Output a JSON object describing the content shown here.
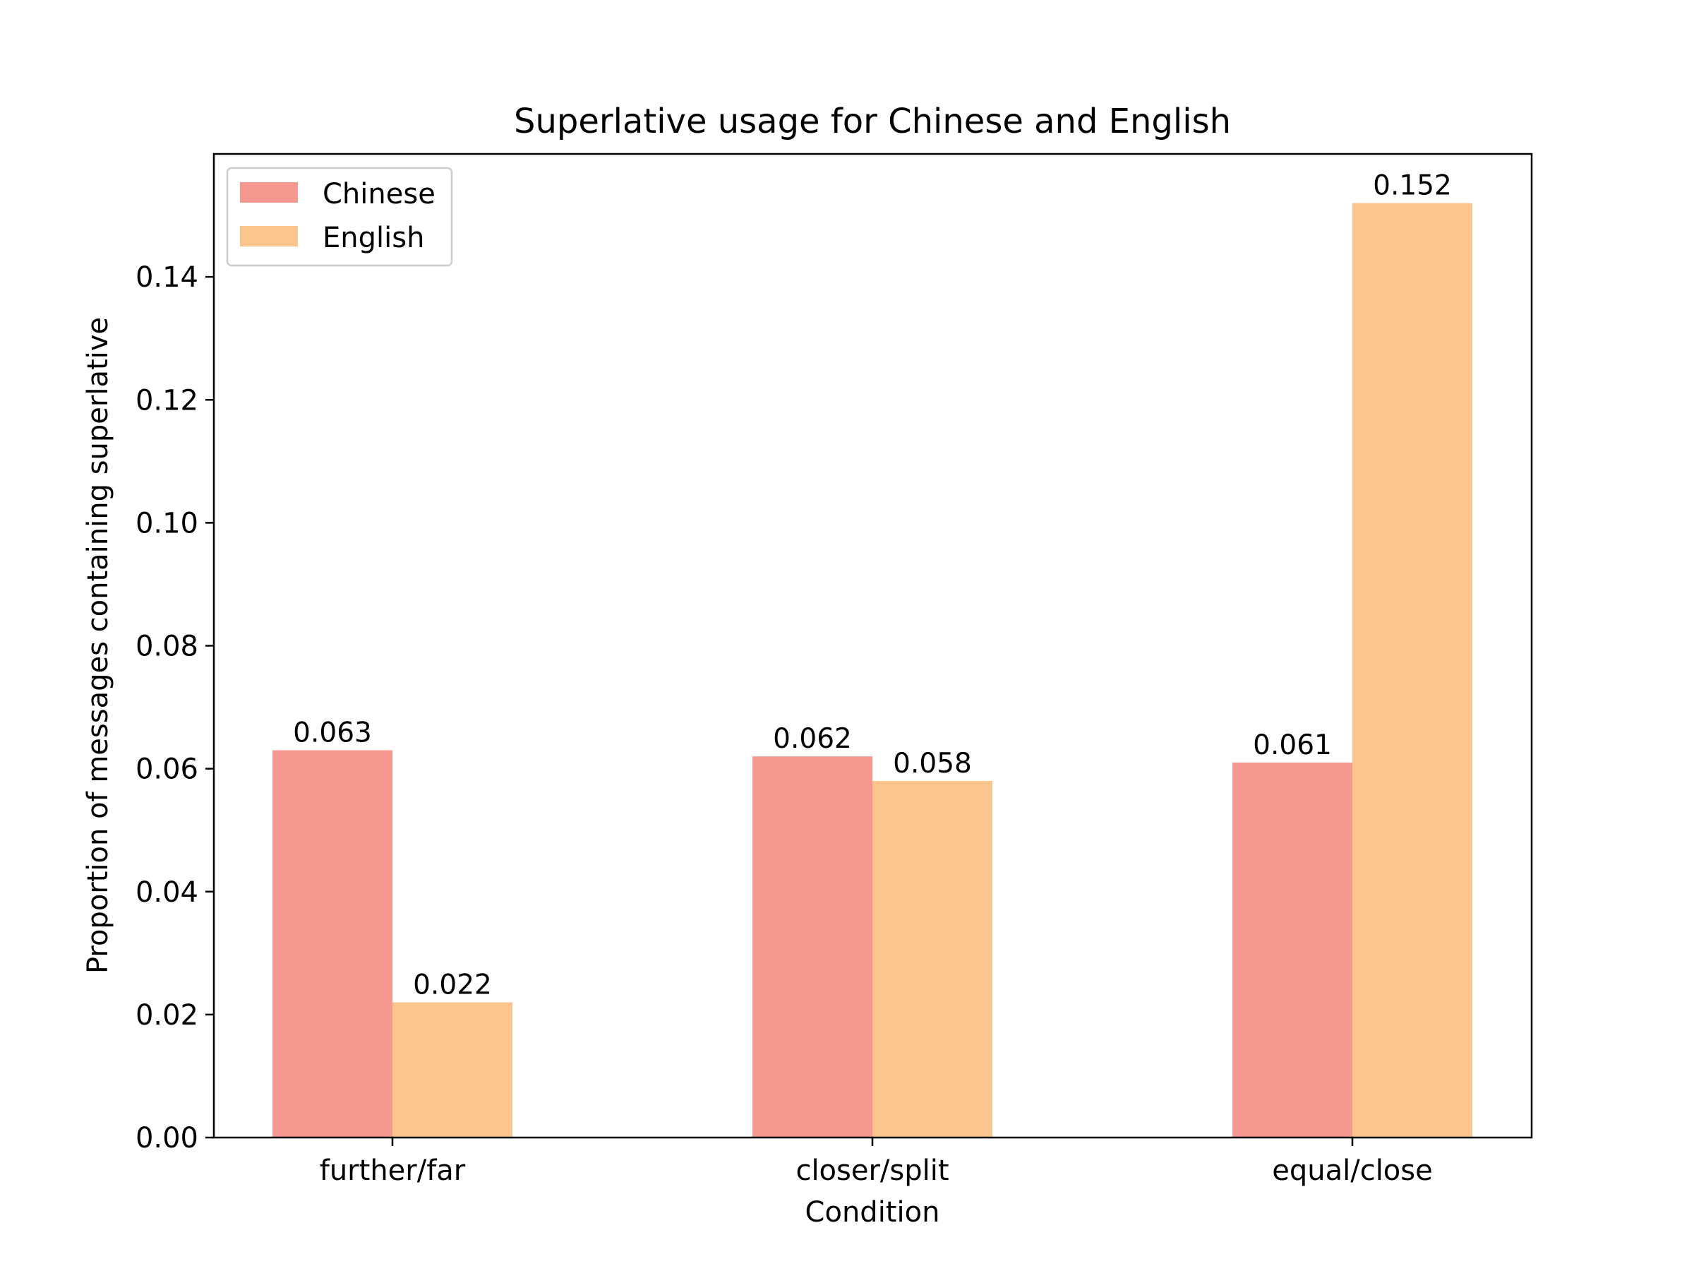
{
  "chart_data": {
    "type": "bar",
    "title": "Superlative usage for Chinese and English",
    "xlabel": "Condition",
    "ylabel": "Proportion of messages containing superlative",
    "categories": [
      "further/far",
      "closer/split",
      "equal/close"
    ],
    "series": [
      {
        "name": "Chinese",
        "color": "#f4978f",
        "values": [
          0.063,
          0.062,
          0.061
        ]
      },
      {
        "name": "English",
        "color": "#fac58c",
        "values": [
          0.022,
          0.058,
          0.152
        ]
      }
    ],
    "value_labels": [
      [
        "0.063",
        "0.062",
        "0.061"
      ],
      [
        "0.022",
        "0.058",
        "0.152"
      ]
    ],
    "ylim": [
      0,
      0.16
    ],
    "yticks": [
      0.0,
      0.02,
      0.04,
      0.06,
      0.08,
      0.1,
      0.12,
      0.14
    ],
    "ytick_labels": [
      "0.00",
      "0.02",
      "0.04",
      "0.06",
      "0.08",
      "0.10",
      "0.12",
      "0.14"
    ],
    "grid": false,
    "legend_position": "top-left"
  }
}
